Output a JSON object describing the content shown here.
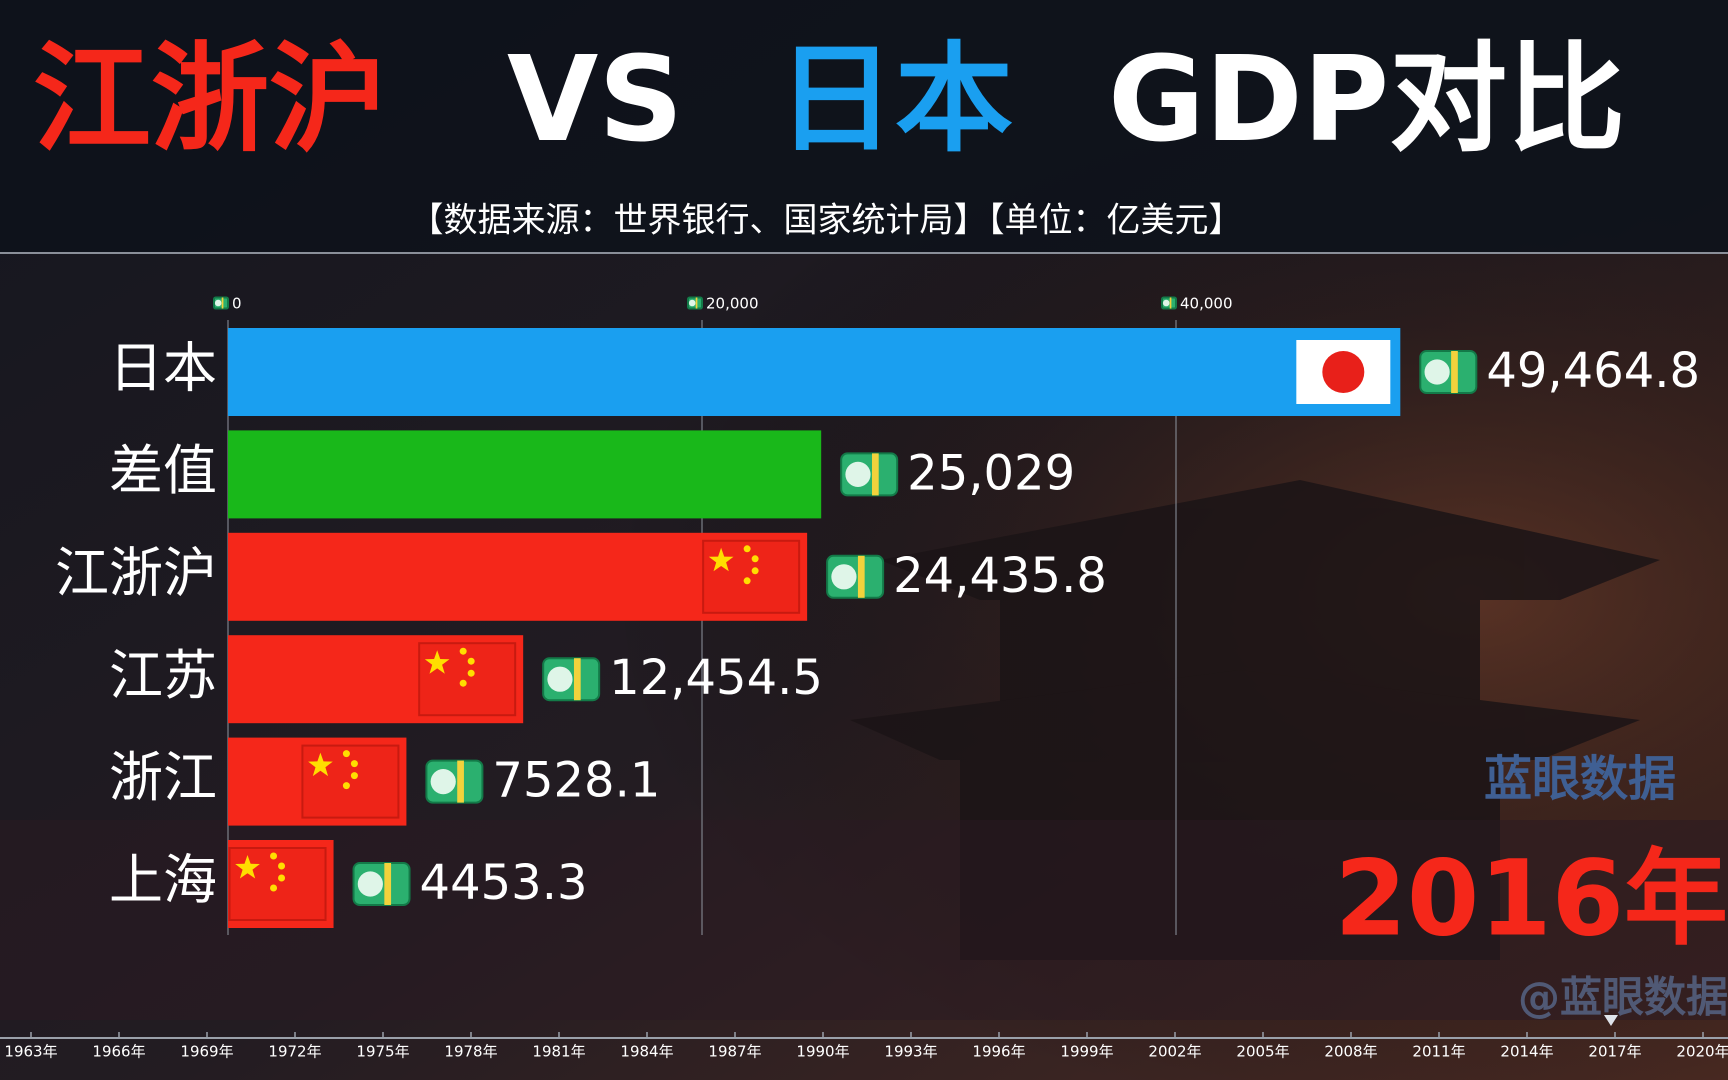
{
  "chart_data": {
    "type": "bar",
    "orientation": "horizontal",
    "title_parts": [
      {
        "text": "江浙沪",
        "color": "#f5271a"
      },
      {
        "text": "VS",
        "color": "#ffffff"
      },
      {
        "text": "日本",
        "color": "#1a9ff0"
      },
      {
        "text": "GDP对比",
        "color": "#ffffff"
      }
    ],
    "subtitle": "【数据来源：世界银行、国家统计局】【单位：亿美元】",
    "categories": [
      "日本",
      "差值",
      "江浙沪",
      "江苏",
      "浙江",
      "上海"
    ],
    "values": [
      49464.8,
      25029,
      24435.8,
      12454.5,
      7528.1,
      4453.3
    ],
    "value_labels": [
      "49,464.8",
      "25,029",
      "24,435.8",
      "12,454.5",
      "7528.1",
      "4453.3"
    ],
    "colors": [
      "#1a9ff0",
      "#19b81a",
      "#f5271a",
      "#f5271a",
      "#f5271a",
      "#f5271a"
    ],
    "xlim": [
      0,
      60000
    ],
    "xticks": [
      0,
      {
        "value": 20000,
        "label": "20,000"
      },
      {
        "value": 40000,
        "label": "40,000"
      }
    ],
    "grid": true,
    "current_period": "2016年",
    "watermark": "蓝眼数据",
    "credit": "@蓝眼数据",
    "timeline": [
      "1963年",
      "1966年",
      "1969年",
      "1972年",
      "1975年",
      "1978年",
      "1981年",
      "1984年",
      "1987年",
      "1990年",
      "1993年",
      "1996年",
      "1999年",
      "2002年",
      "2005年",
      "2008年",
      "2011年",
      "2014年",
      "2017年",
      "2020年"
    ]
  }
}
